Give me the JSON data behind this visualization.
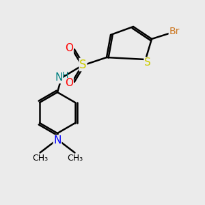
{
  "background_color": "#ebebeb",
  "atom_colors": {
    "N_sulfonamide": "#008080",
    "N_amine": "#0000ff",
    "S_sulfonamide": "#cccc00",
    "S_thiophene": "#cccc00",
    "O": "#ff0000",
    "Br": "#cc7722"
  },
  "bond_color": "#000000",
  "bond_width": 1.8,
  "font_size": 10,
  "fig_size": [
    3.0,
    3.0
  ],
  "dpi": 100,
  "xlim": [
    0,
    10
  ],
  "ylim": [
    0,
    10
  ]
}
